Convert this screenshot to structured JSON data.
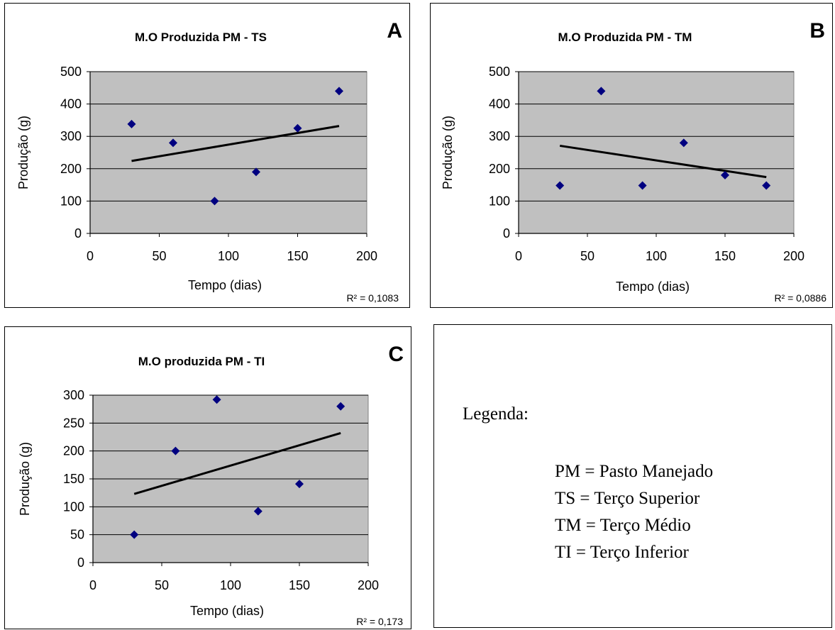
{
  "chart_data": [
    {
      "type": "scatter",
      "panel_label": "A",
      "title": "M.O Produzida PM - TS",
      "xlabel": "Tempo (dias)",
      "ylabel": "Produção (g)",
      "xlim": [
        0,
        200
      ],
      "ylim": [
        0,
        500
      ],
      "xticks": [
        0,
        50,
        100,
        150,
        200
      ],
      "yticks": [
        0,
        100,
        200,
        300,
        400,
        500
      ],
      "grid": true,
      "points": [
        [
          30,
          338
        ],
        [
          60,
          280
        ],
        [
          90,
          100
        ],
        [
          120,
          190
        ],
        [
          150,
          325
        ],
        [
          180,
          440
        ]
      ],
      "trendline": [
        [
          30,
          224
        ],
        [
          180,
          332
        ]
      ],
      "r2_label": "R² = 0,1083",
      "colors": {
        "plot_bg": "#c0c0c0",
        "marker": "#000080",
        "trend": "#000000"
      }
    },
    {
      "type": "scatter",
      "panel_label": "B",
      "title": "M.O Produzida PM - TM",
      "xlabel": "Tempo (dias)",
      "ylabel": "Produção (g)",
      "xlim": [
        0,
        200
      ],
      "ylim": [
        0,
        500
      ],
      "xticks": [
        0,
        50,
        100,
        150,
        200
      ],
      "yticks": [
        0,
        100,
        200,
        300,
        400,
        500
      ],
      "grid": true,
      "points": [
        [
          30,
          148
        ],
        [
          60,
          440
        ],
        [
          90,
          148
        ],
        [
          120,
          280
        ],
        [
          150,
          180
        ],
        [
          180,
          148
        ]
      ],
      "trendline": [
        [
          30,
          271
        ],
        [
          180,
          174
        ]
      ],
      "r2_label": "R² = 0,0886",
      "colors": {
        "plot_bg": "#c0c0c0",
        "marker": "#000080",
        "trend": "#000000"
      }
    },
    {
      "type": "scatter",
      "panel_label": "C",
      "title": "M.O produzida PM - TI",
      "xlabel": "Tempo (dias)",
      "ylabel": "Produção (g)",
      "xlim": [
        0,
        200
      ],
      "ylim": [
        0,
        300
      ],
      "xticks": [
        0,
        50,
        100,
        150,
        200
      ],
      "yticks": [
        0,
        50,
        100,
        150,
        200,
        250,
        300
      ],
      "grid": true,
      "points": [
        [
          30,
          50
        ],
        [
          60,
          200
        ],
        [
          90,
          292
        ],
        [
          120,
          92
        ],
        [
          150,
          141
        ],
        [
          180,
          280
        ]
      ],
      "trendline": [
        [
          30,
          123
        ],
        [
          180,
          232
        ]
      ],
      "r2_label": "R² = 0,173",
      "colors": {
        "plot_bg": "#c0c0c0",
        "marker": "#000080",
        "trend": "#000000"
      }
    }
  ],
  "legend": {
    "heading": "Legenda:",
    "items": [
      "PM = Pasto Manejado",
      "TS = Terço Superior",
      "TM = Terço Médio",
      "TI = Terço Inferior"
    ]
  }
}
